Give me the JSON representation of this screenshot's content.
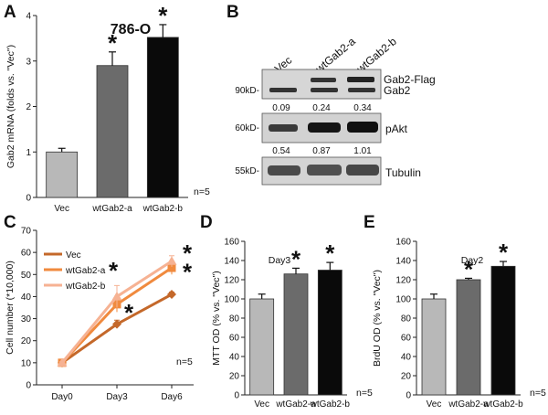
{
  "panels": {
    "A": {
      "letter": "A",
      "cell_line": "786-O",
      "n_label": "n=5"
    },
    "B": {
      "letter": "B",
      "lanes": [
        "Vec",
        "wtGab2-a",
        "wtGab2-b"
      ],
      "blot1": {
        "marker": "90kD-",
        "bands": [
          "Gab2-Flag",
          "Gab2"
        ],
        "quant": [
          "0.09",
          "0.24",
          "0.34"
        ]
      },
      "blot2": {
        "marker": "60kD-",
        "label": "pAkt",
        "quant": [
          "0.54",
          "0.87",
          "1.01"
        ]
      },
      "blot3": {
        "marker": "55kD-",
        "label": "Tubulin"
      }
    },
    "C": {
      "letter": "C",
      "n_label": "n=5"
    },
    "D": {
      "letter": "D",
      "day_label": "Day3",
      "n_label": "n=5"
    },
    "E": {
      "letter": "E",
      "day_label": "Day2",
      "n_label": "n=5"
    }
  },
  "colors": {
    "vec": "#b8b8b8",
    "a": "#6b6b6b",
    "b": "#0a0a0a",
    "c_vec": "#c4682a",
    "c_a": "#f08a3e",
    "c_b": "#f6b293"
  },
  "chart_data": [
    {
      "id": "A",
      "type": "bar",
      "categories": [
        "Vec",
        "wtGab2-a",
        "wtGab2-b"
      ],
      "values": [
        1.0,
        2.9,
        3.52
      ],
      "errors": [
        0.08,
        0.3,
        0.28
      ],
      "significance": [
        "",
        "*",
        "*"
      ],
      "ylabel": "Gab2 mRNA (folds vs. \"Vec\")",
      "ylim": [
        0,
        4
      ],
      "yticks": [
        "0",
        "1",
        "2",
        "3",
        "4"
      ]
    },
    {
      "id": "C",
      "type": "line",
      "x": [
        "Day0",
        "Day3",
        "Day6"
      ],
      "series": [
        {
          "name": "Vec",
          "values": [
            10,
            27.5,
            41
          ],
          "errors": [
            0.5,
            1.8,
            1
          ]
        },
        {
          "name": "wtGab2-a",
          "values": [
            10,
            36.5,
            53
          ],
          "errors": [
            0.5,
            3.5,
            3
          ]
        },
        {
          "name": "wtGab2-b",
          "values": [
            10,
            40,
            56
          ],
          "errors": [
            0.5,
            5,
            2.5
          ]
        }
      ],
      "significance": [
        "*",
        "*",
        "*",
        "*"
      ],
      "ylabel": "Cell number (*10,000)",
      "ylim": [
        0,
        70
      ],
      "yticks": [
        "0",
        "10",
        "20",
        "30",
        "40",
        "50",
        "60",
        "70"
      ]
    },
    {
      "id": "D",
      "type": "bar",
      "categories": [
        "Vec",
        "wtGab2-a",
        "wtGab2-b"
      ],
      "values": [
        100,
        126,
        130
      ],
      "errors": [
        5,
        6,
        8
      ],
      "significance": [
        "",
        "*",
        "*"
      ],
      "ylabel": "MTT OD (% vs. \"Vec\")",
      "ylim": [
        0,
        160
      ],
      "yticks": [
        "0",
        "20",
        "40",
        "60",
        "80",
        "100",
        "120",
        "140",
        "160"
      ]
    },
    {
      "id": "E",
      "type": "bar",
      "categories": [
        "Vec",
        "wtGab2-a",
        "wtGab2-b"
      ],
      "values": [
        100,
        120,
        134
      ],
      "errors": [
        5,
        1.5,
        5
      ],
      "significance": [
        "",
        "*",
        "*"
      ],
      "ylabel": "BrdU OD (% vs. \"Vec\")",
      "ylim": [
        0,
        160
      ],
      "yticks": [
        "0",
        "20",
        "40",
        "60",
        "80",
        "100",
        "120",
        "140",
        "160"
      ]
    }
  ]
}
